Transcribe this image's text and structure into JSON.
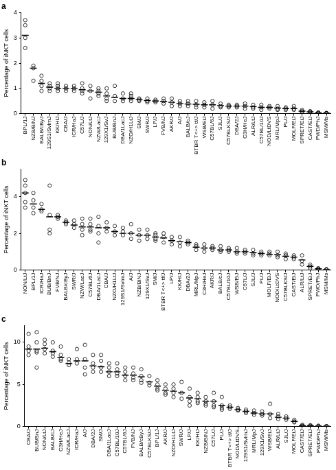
{
  "chart_data": [
    {
      "type": "scatter",
      "title": "a",
      "y_label": "Percentage of iNKT cells",
      "marker": "open circle",
      "color": "#000000",
      "grid": false,
      "ylim": [
        0,
        4
      ],
      "yticks": [
        0,
        1,
        2,
        3,
        4
      ],
      "categories": [
        "BPL/1J",
        "NZB/BlNJ",
        "BALB/cByJ",
        "129S1/SvImJ",
        "KK/HIJ",
        "CBA/J",
        "ICR/HaJ",
        "C57L/J",
        "NON/LtJ",
        "NZW/LacJ",
        "129X1/SvJ",
        "BUB/BnJ",
        "DBA/1LacJ",
        "NZO/H1LtJ",
        "SM/J",
        "SWR/J",
        "LP/J",
        "FVB/NJ",
        "AKR/J",
        "A/J",
        "BALB/cJ",
        "BTBR T<+> tf/J",
        "WSB/EiJ",
        "C57BL/6J",
        "SJL/J",
        "C57BLKS/J",
        "DBA/2J",
        "C3H/HeJ",
        "ALR/LtJ",
        "C57BL/10J",
        "NOD/LtDVS",
        "MRL/MpJ",
        "PL/J",
        "MOLF/EiJ",
        "SPRET/EiJ",
        "CAST/EiJ",
        "PWD/PhJ",
        "MSM/Ms"
      ],
      "values": [
        [
          3.7,
          3.5,
          3.0,
          2.6
        ],
        [
          1.9,
          1.8,
          1.3
        ],
        [
          1.5,
          1.3,
          1.1,
          0.9
        ],
        [
          1.2,
          1.1,
          1.0,
          0.9
        ],
        [
          1.2,
          1.1,
          1.0,
          0.9
        ],
        [
          1.1,
          1.0,
          0.9
        ],
        [
          1.1,
          1.0,
          0.9
        ],
        [
          1.2,
          1.0,
          0.9,
          0.8
        ],
        [
          1.1,
          0.9,
          0.6
        ],
        [
          1.0,
          0.9,
          0.8,
          0.7
        ],
        [
          1.0,
          0.8,
          0.6,
          0.5
        ],
        [
          1.1,
          0.7,
          0.5
        ],
        [
          0.8,
          0.6,
          0.5
        ],
        [
          0.8,
          0.7,
          0.6,
          0.5
        ],
        [
          0.6,
          0.55,
          0.5
        ],
        [
          0.6,
          0.5,
          0.45
        ],
        [
          0.55,
          0.5,
          0.45
        ],
        [
          0.6,
          0.5,
          0.4
        ],
        [
          0.6,
          0.45,
          0.3
        ],
        [
          0.5,
          0.4,
          0.3
        ],
        [
          0.5,
          0.4,
          0.3
        ],
        [
          0.5,
          0.35,
          0.25
        ],
        [
          0.45,
          0.35,
          0.25
        ],
        [
          0.5,
          0.35,
          0.2
        ],
        [
          0.4,
          0.3,
          0.25
        ],
        [
          0.35,
          0.3,
          0.25
        ],
        [
          0.35,
          0.3,
          0.25
        ],
        [
          0.4,
          0.3,
          0.2
        ],
        [
          0.35,
          0.25,
          0.2
        ],
        [
          0.35,
          0.25,
          0.15
        ],
        [
          0.3,
          0.25,
          0.2
        ],
        [
          0.3,
          0.2,
          0.15
        ],
        [
          0.25,
          0.2,
          0.15
        ],
        [
          0.3,
          0.2,
          0.15
        ],
        [
          0.15,
          0.1,
          0.05
        ],
        [
          0.1,
          0.07,
          0.05
        ],
        [
          0.05,
          0.03,
          0.02
        ],
        [
          0.03,
          0.02,
          0.01
        ]
      ],
      "means": [
        3.1,
        1.8,
        1.2,
        1.05,
        1.0,
        1.0,
        1.0,
        0.95,
        0.9,
        0.85,
        0.7,
        0.65,
        0.6,
        0.6,
        0.55,
        0.52,
        0.5,
        0.48,
        0.45,
        0.4,
        0.38,
        0.37,
        0.35,
        0.35,
        0.32,
        0.3,
        0.3,
        0.3,
        0.28,
        0.25,
        0.25,
        0.22,
        0.2,
        0.2,
        0.1,
        0.07,
        0.03,
        0.02
      ]
    },
    {
      "type": "scatter",
      "title": "b",
      "y_label": "Percentage of iNKT cells",
      "marker": "open circle",
      "color": "#000000",
      "grid": false,
      "ylim": [
        0,
        5.5
      ],
      "yticks": [
        0,
        2,
        4
      ],
      "categories": [
        "NON/LtJ",
        "BPL/1J",
        "ICR/HaJ",
        "BUB/BnJ",
        "FVB/NJ",
        "BALB/cByJ",
        "SWR/J",
        "NZW/LacJ",
        "C57BL/6J",
        "DBA/1LacJ",
        "CBA/J",
        "NZO/H1LtJ",
        "129S1/SvImJ",
        "A/J",
        "NZB/BlNJ",
        "129X1/SvJ",
        "SM/J",
        "BTBR T<+> tf/J",
        "LP/J",
        "KK/HIJ",
        "DBA/2J",
        "MRL/MpJ",
        "C3H/HeJ",
        "AKR/J",
        "BALB/cJ",
        "C57BL/10J",
        "WSB/EiJ",
        "C57L/J",
        "SJL/J",
        "PL/J",
        "MOLF/EiJ",
        "NOD/LtDVS",
        "C57BLKS/J",
        "CAST/EiJ",
        "ALR/LtJ",
        "SPRET/EiJ",
        "PWD/PhJ",
        "MSM/Ms"
      ],
      "values": [
        [
          4.9,
          4.6,
          4.2,
          3.7,
          3.4
        ],
        [
          4.2,
          3.8,
          3.4,
          3.1
        ],
        [
          3.6,
          3.3,
          3.2
        ],
        [
          4.6,
          3.0,
          2.2,
          2.0
        ],
        [
          3.0,
          2.9,
          2.8
        ],
        [
          2.7,
          2.6,
          2.5
        ],
        [
          2.7,
          2.5,
          2.3
        ],
        [
          2.8,
          2.5,
          2.2,
          1.9
        ],
        [
          2.8,
          2.5,
          2.2,
          2.1
        ],
        [
          2.9,
          2.4,
          2.0,
          1.5
        ],
        [
          2.6,
          2.3,
          2.1
        ],
        [
          2.4,
          2.1,
          1.9
        ],
        [
          2.3,
          2.1,
          1.9
        ],
        [
          2.5,
          2.0,
          1.7
        ],
        [
          2.2,
          1.9,
          1.6
        ],
        [
          2.2,
          1.9,
          1.7
        ],
        [
          2.0,
          1.9,
          1.7,
          1.6
        ],
        [
          2.0,
          1.8,
          1.5
        ],
        [
          1.8,
          1.6,
          1.4
        ],
        [
          1.8,
          1.5,
          1.3
        ],
        [
          1.6,
          1.5,
          1.4
        ],
        [
          1.4,
          1.3,
          1.1
        ],
        [
          1.4,
          1.2,
          1.0
        ],
        [
          1.3,
          1.2,
          1.1
        ],
        [
          1.3,
          1.1,
          1.0
        ],
        [
          1.2,
          1.1,
          1.0
        ],
        [
          1.2,
          1.0,
          0.9
        ],
        [
          1.1,
          1.0,
          0.9
        ],
        [
          1.1,
          0.9,
          0.8
        ],
        [
          1.0,
          0.9,
          0.8
        ],
        [
          1.0,
          0.9,
          0.8
        ],
        [
          1.0,
          0.8,
          0.7
        ],
        [
          0.9,
          0.8,
          0.6
        ],
        [
          0.8,
          0.7,
          0.6
        ],
        [
          0.8,
          0.5,
          0.3
        ],
        [
          0.3,
          0.2,
          0.1
        ],
        [
          0.1,
          0.07,
          0.05
        ],
        [
          0.05,
          0.03,
          0.02
        ]
      ],
      "means": [
        4.2,
        3.6,
        3.3,
        2.9,
        2.9,
        2.6,
        2.45,
        2.35,
        2.35,
        2.3,
        2.3,
        2.1,
        2.0,
        2.0,
        1.9,
        1.9,
        1.8,
        1.75,
        1.6,
        1.55,
        1.5,
        1.25,
        1.2,
        1.2,
        1.1,
        1.1,
        1.0,
        1.0,
        0.95,
        0.9,
        0.85,
        0.85,
        0.75,
        0.7,
        0.55,
        0.2,
        0.07,
        0.03
      ]
    },
    {
      "type": "scatter",
      "title": "c",
      "y_label": "Percentage of iNKT cells",
      "marker": "open circle",
      "color": "#000000",
      "grid": false,
      "ylim": [
        0,
        12
      ],
      "yticks": [
        0,
        5,
        10
      ],
      "categories": [
        "CBA/J",
        "BUB/BnJ",
        "NON/LtJ",
        "BALB/cJ",
        "C3H/HeJ",
        "NZW/LacJ",
        "ICR/HaJ",
        "A/J",
        "DBA/2J",
        "SM/J",
        "DBA/1LacJ",
        "C57BL/10J",
        "C57BL/6J",
        "FVB/NJ",
        "BALB/cByJ",
        "C57BLKS/J",
        "BPL/1J",
        "AKR/J",
        "NZO/H1LtJ",
        "SWR/J",
        "LP/J",
        "KK/HIJ",
        "NZB/BlNJ",
        "C57L/J",
        "PL/J",
        "BTBR T<+> tf/J",
        "NOD/LtDVS",
        "129S1/SvImJ",
        "MRL/MpJ",
        "129X1/SvJ",
        "WSB/EiJ",
        "ALR/LtJ",
        "SJL/J",
        "MOLF/EiJ",
        "CAST/EiJ",
        "SPRET/EiJ",
        "PWD/PhJ",
        "MSM/Ms"
      ],
      "values": [
        [
          11,
          9.5,
          9,
          8.5
        ],
        [
          11.2,
          10,
          9,
          8.8,
          7
        ],
        [
          10.3,
          9.8,
          9.2,
          8.7
        ],
        [
          10,
          9,
          8.7,
          8.3
        ],
        [
          9.5,
          8.5,
          8,
          7.8
        ],
        [
          8,
          7.6,
          7.3
        ],
        [
          9.2,
          8,
          7.5
        ],
        [
          9.7,
          8,
          7,
          6.2
        ],
        [
          8.5,
          7.5,
          7,
          6.5
        ],
        [
          8.5,
          7.8,
          7,
          6.5
        ],
        [
          7.5,
          7,
          6.5,
          6
        ],
        [
          7.5,
          6.8,
          6.3,
          6
        ],
        [
          7,
          6.5,
          6,
          5.5
        ],
        [
          7,
          6.3,
          5.8,
          5.5
        ],
        [
          6.8,
          6,
          5.5,
          5.2
        ],
        [
          6,
          5.2,
          4.9
        ],
        [
          5.5,
          5,
          4.5,
          4.3
        ],
        [
          5,
          4.5,
          4,
          3.8
        ],
        [
          5,
          4.5,
          4,
          3.5
        ],
        [
          5.3,
          4,
          3.3
        ],
        [
          4.5,
          3.5,
          3,
          2.5
        ],
        [
          4,
          3.5,
          3,
          2.8
        ],
        [
          3.5,
          3,
          2.7,
          2.5
        ],
        [
          4,
          3,
          2.5,
          2.3
        ],
        [
          3.5,
          2.5,
          2.2,
          2
        ],
        [
          2.5,
          2.3,
          2.1
        ],
        [
          2.2,
          2,
          1.9
        ],
        [
          2,
          1.8,
          1.6
        ],
        [
          1.9,
          1.6,
          1.4
        ],
        [
          1.8,
          1.5,
          1.3
        ],
        [
          2.7,
          1.5,
          1
        ],
        [
          1.5,
          1.2,
          0.9
        ],
        [
          1.2,
          1,
          0.8
        ],
        [
          0.8,
          0.6,
          0.5
        ],
        [
          0.2,
          0.1,
          0.05
        ],
        [
          0.15,
          0.1,
          0.05
        ],
        [
          0.1,
          0.05,
          0.02
        ],
        [
          0.05,
          0.03,
          0.01
        ]
      ],
      "means": [
        9.2,
        9.2,
        9.3,
        8.9,
        8.2,
        7.5,
        7.8,
        7.8,
        7.2,
        7.1,
        6.5,
        6.5,
        6.1,
        6.1,
        5.9,
        5.3,
        4.8,
        4.3,
        4.2,
        4.0,
        3.4,
        3.3,
        3.0,
        3.0,
        2.5,
        2.3,
        2.0,
        1.8,
        1.6,
        1.5,
        1.5,
        1.1,
        1.0,
        0.6,
        0.1,
        0.1,
        0.05,
        0.03
      ]
    }
  ]
}
